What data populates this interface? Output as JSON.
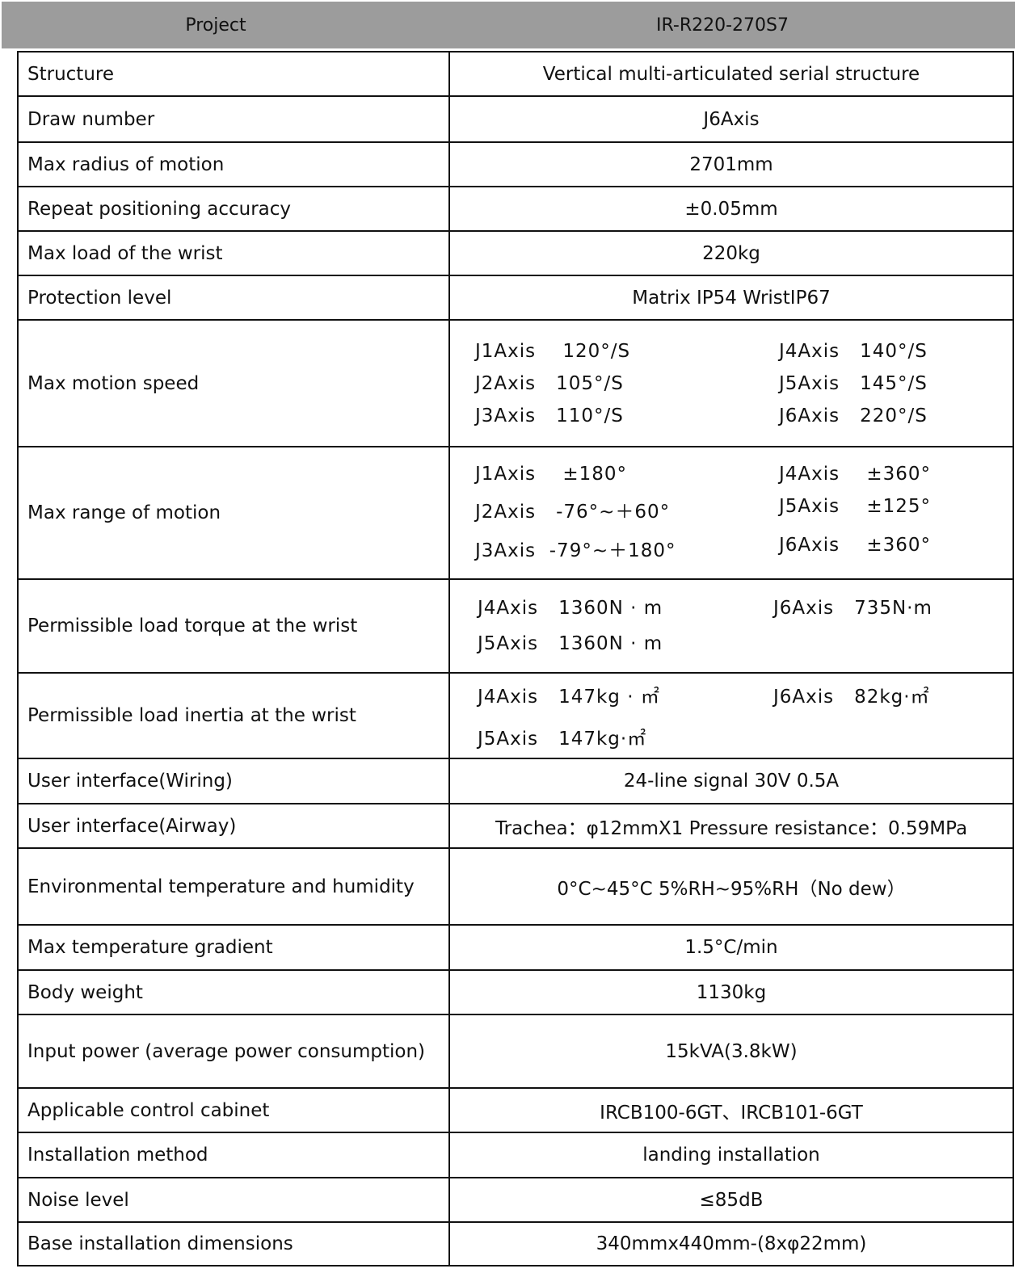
{
  "header": {
    "project_label": "Project",
    "model": "IR-R220-270S7",
    "background_color": "#9c9c9c"
  },
  "rows": [
    {
      "label": "Structure",
      "value": "Vertical multi-articulated serial structure"
    },
    {
      "label": "Draw number",
      "value": "J6Axis"
    },
    {
      "label": "Max radius of motion",
      "value": "2701mm"
    },
    {
      "label": "Repeat positioning accuracy",
      "value": "±0.05mm"
    },
    {
      "label": "Max load of the wrist",
      "value": "220kg"
    },
    {
      "label": "Protection level",
      "value": "Matrix IP54   WristIP67"
    },
    {
      "label": "Max motion speed",
      "grid": [
        "J1Axis    120°/S",
        "J4Axis   140°/S",
        "J2Axis   105°/S",
        "J5Axis   145°/S",
        "J3Axis   110°/S",
        "J6Axis   220°/S"
      ]
    },
    {
      "label": "Max range of motion",
      "grid": [
        "J1Axis    ±180°",
        "J4Axis    ±360°",
        "J2Axis   -76°~＋60°",
        "J5Axis    ±125°",
        "J3Axis  -79°~＋180°",
        "J6Axis    ±360°"
      ]
    },
    {
      "label": "Permissible load torque at the wrist",
      "grid": [
        "J4Axis   1360N · m",
        "J6Axis   735N·m",
        "J5Axis   1360N · m",
        ""
      ],
      "tight": true
    },
    {
      "label": "Permissible load inertia at the wrist",
      "grid": [
        "J4Axis   147kg · ㎡",
        "J6Axis   82kg·㎡",
        "J5Axis   147kg·㎡",
        ""
      ],
      "tight": true
    },
    {
      "label": "User interface(Wiring)",
      "value": "24-line signal   30V 0.5A"
    },
    {
      "label": "User interface(Airway)",
      "value": "Trachea：φ12mmX1   Pressure resistance：0.59MPa"
    },
    {
      "label": "Environmental temperature and humidity",
      "value": "0°C~45°C    5%RH~95%RH（No dew）"
    },
    {
      "label": "Max temperature gradient",
      "value": "1.5°C/min"
    },
    {
      "label": "Body weight",
      "value": "1130kg"
    },
    {
      "label": "Input power (average power consumption)",
      "value": "15kVA(3.8kW)"
    },
    {
      "label": "Applicable control cabinet",
      "value": "IRCB100-6GT、IRCB101-6GT"
    },
    {
      "label": "Installation method",
      "value": "landing installation"
    },
    {
      "label": "Noise level",
      "value": "≤85dB"
    },
    {
      "label": "Base installation dimensions",
      "value": "340mmx440mm-(8xφ22mm)"
    }
  ]
}
